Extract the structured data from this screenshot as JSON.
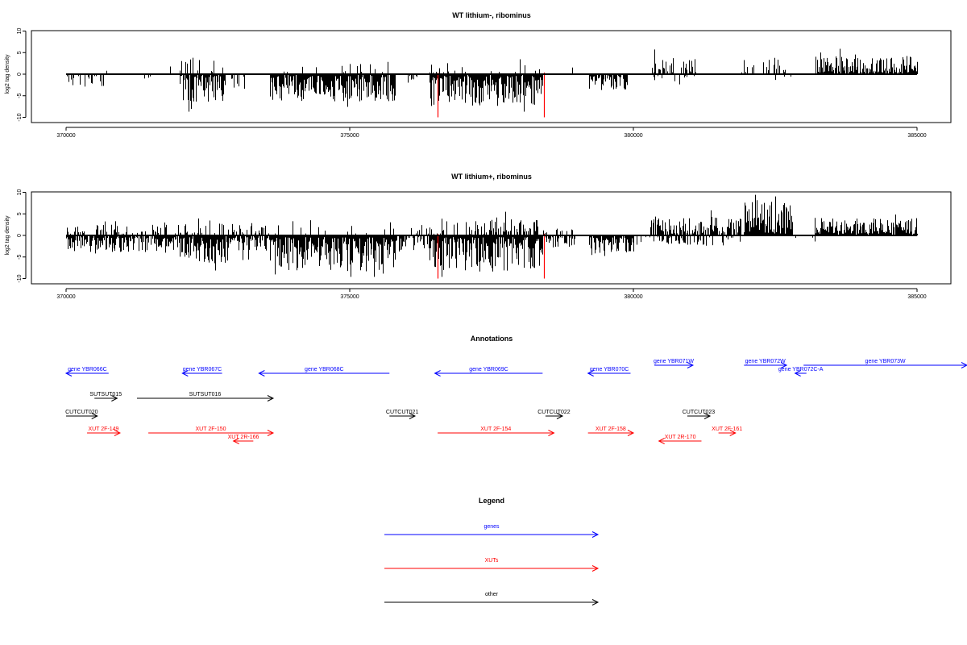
{
  "colors": {
    "gene": "#0000ff",
    "xut": "#ff0000",
    "other": "#000000",
    "highlight": "#ff0000"
  },
  "chart_data": [
    {
      "type": "bar",
      "title": "WT lithium-, ribominus",
      "ylabel": "log2 tag density",
      "xlim": [
        370000,
        385000
      ],
      "ylim": [
        -10,
        10
      ],
      "xticks": [
        "370000",
        "375000",
        "380000",
        "385000"
      ],
      "yticks": [
        "10",
        "5",
        "0",
        "-5",
        "-10"
      ],
      "highlight_positions": [
        376550,
        378420
      ],
      "segments": [
        {
          "start": 370000,
          "end": 370700,
          "density": 0.35,
          "dir": -1,
          "amp": 3.0,
          "seed": 11
        },
        {
          "start": 370700,
          "end": 371000,
          "density": 0.12,
          "dir": 1,
          "amp": 2.5,
          "seed": 12
        },
        {
          "start": 371300,
          "end": 371500,
          "density": 0.1,
          "dir": -1,
          "amp": 2.5,
          "seed": 13
        },
        {
          "start": 371800,
          "end": 371900,
          "density": 0.15,
          "dir": 1,
          "amp": 1.5,
          "seed": 14
        },
        {
          "start": 372000,
          "end": 372800,
          "density": 0.85,
          "dir": -1,
          "amp": 6.0,
          "seed": 15
        },
        {
          "start": 372000,
          "end": 372800,
          "density": 0.2,
          "dir": 1,
          "amp": 3.5,
          "seed": 16
        },
        {
          "start": 372900,
          "end": 373200,
          "density": 0.15,
          "dir": -1,
          "amp": 3.0,
          "seed": 17
        },
        {
          "start": 373600,
          "end": 375800,
          "density": 0.95,
          "dir": -1,
          "amp": 6.0,
          "seed": 18
        },
        {
          "start": 373600,
          "end": 375800,
          "density": 0.06,
          "dir": 1,
          "amp": 2.0,
          "seed": 19
        },
        {
          "start": 376000,
          "end": 376200,
          "density": 0.2,
          "dir": -1,
          "amp": 2.5,
          "seed": 20
        },
        {
          "start": 376400,
          "end": 378400,
          "density": 0.95,
          "dir": -1,
          "amp": 7.0,
          "seed": 21
        },
        {
          "start": 376400,
          "end": 378400,
          "density": 0.12,
          "dir": 1,
          "amp": 2.5,
          "seed": 22
        },
        {
          "start": 378800,
          "end": 379000,
          "density": 0.1,
          "dir": 1,
          "amp": 1.5,
          "seed": 23
        },
        {
          "start": 379200,
          "end": 379900,
          "density": 0.75,
          "dir": -1,
          "amp": 3.5,
          "seed": 24
        },
        {
          "start": 380300,
          "end": 381100,
          "density": 0.4,
          "dir": 1,
          "amp": 3.5,
          "seed": 25
        },
        {
          "start": 380300,
          "end": 381100,
          "density": 0.15,
          "dir": -1,
          "amp": 2.5,
          "seed": 26
        },
        {
          "start": 381900,
          "end": 382700,
          "density": 0.35,
          "dir": 1,
          "amp": 3.5,
          "seed": 27
        },
        {
          "start": 382400,
          "end": 382800,
          "density": 0.1,
          "dir": -1,
          "amp": 2.5,
          "seed": 28
        },
        {
          "start": 383200,
          "end": 385000,
          "density": 0.85,
          "dir": 1,
          "amp": 3.8,
          "seed": 29
        }
      ]
    },
    {
      "type": "bar",
      "title": "WT lithium+, ribominus",
      "ylabel": "log2 tag density",
      "xlim": [
        370000,
        385000
      ],
      "ylim": [
        -10,
        10
      ],
      "xticks": [
        "370000",
        "375000",
        "380000",
        "385000"
      ],
      "yticks": [
        "10",
        "5",
        "0",
        "-5",
        "-10"
      ],
      "highlight_positions": [
        376550,
        378420
      ],
      "segments": [
        {
          "start": 370000,
          "end": 373600,
          "density": 0.8,
          "dir": -1,
          "amp": 3.5,
          "seed": 31
        },
        {
          "start": 370000,
          "end": 373600,
          "density": 0.25,
          "dir": 1,
          "amp": 3.0,
          "seed": 32
        },
        {
          "start": 372000,
          "end": 372800,
          "density": 0.9,
          "dir": -1,
          "amp": 6.5,
          "seed": 33
        },
        {
          "start": 373600,
          "end": 375800,
          "density": 1.0,
          "dir": -1,
          "amp": 8.0,
          "seed": 34
        },
        {
          "start": 373600,
          "end": 375800,
          "density": 0.1,
          "dir": 1,
          "amp": 3.0,
          "seed": 35
        },
        {
          "start": 375800,
          "end": 376400,
          "density": 0.6,
          "dir": -1,
          "amp": 3.0,
          "seed": 36
        },
        {
          "start": 375800,
          "end": 376400,
          "density": 0.2,
          "dir": 1,
          "amp": 2.5,
          "seed": 37
        },
        {
          "start": 376400,
          "end": 378400,
          "density": 1.0,
          "dir": -1,
          "amp": 8.0,
          "seed": 38
        },
        {
          "start": 376400,
          "end": 378400,
          "density": 0.4,
          "dir": 1,
          "amp": 3.5,
          "seed": 39
        },
        {
          "start": 378400,
          "end": 379000,
          "density": 0.45,
          "dir": -1,
          "amp": 2.5,
          "seed": 40
        },
        {
          "start": 378400,
          "end": 379000,
          "density": 0.2,
          "dir": 1,
          "amp": 2.0,
          "seed": 41
        },
        {
          "start": 379200,
          "end": 380000,
          "density": 0.8,
          "dir": -1,
          "amp": 4.5,
          "seed": 42
        },
        {
          "start": 380000,
          "end": 380300,
          "density": 0.25,
          "dir": -1,
          "amp": 2.0,
          "seed": 43
        },
        {
          "start": 380300,
          "end": 381900,
          "density": 0.7,
          "dir": 1,
          "amp": 4.0,
          "seed": 44
        },
        {
          "start": 380300,
          "end": 381900,
          "density": 0.3,
          "dir": -1,
          "amp": 2.0,
          "seed": 45
        },
        {
          "start": 381950,
          "end": 382800,
          "density": 1.0,
          "dir": 1,
          "amp": 7.5,
          "seed": 46
        },
        {
          "start": 382800,
          "end": 383200,
          "density": 0.25,
          "dir": -1,
          "amp": 1.5,
          "seed": 47
        },
        {
          "start": 383200,
          "end": 385000,
          "density": 0.9,
          "dir": 1,
          "amp": 3.8,
          "seed": 48
        }
      ]
    }
  ],
  "annotations": {
    "title": "Annotations",
    "features": [
      {
        "label": "gene YBR066C",
        "class": "gene",
        "start": 370000,
        "end": 370750,
        "strand": "-",
        "track": 0
      },
      {
        "label": "gene YBR067C",
        "class": "gene",
        "start": 372050,
        "end": 372750,
        "strand": "-",
        "track": 0
      },
      {
        "label": "gene YBR068C",
        "class": "gene",
        "start": 373400,
        "end": 375700,
        "strand": "-",
        "track": 0
      },
      {
        "label": "gene YBR069C",
        "class": "gene",
        "start": 376500,
        "end": 378400,
        "strand": "-",
        "track": 0
      },
      {
        "label": "gene YBR070C",
        "class": "gene",
        "start": 379200,
        "end": 379950,
        "strand": "-",
        "track": 0
      },
      {
        "label": "gene YBR071W",
        "class": "gene",
        "start": 380370,
        "end": 381050,
        "strand": "+",
        "track": -1
      },
      {
        "label": "gene YBR072W",
        "class": "gene",
        "start": 381950,
        "end": 382700,
        "strand": "+",
        "track": -1
      },
      {
        "label": "gene YBR072C-A",
        "class": "gene",
        "start": 382850,
        "end": 383050,
        "strand": "-",
        "track": 0
      },
      {
        "label": "gene YBR073W",
        "class": "gene",
        "start": 383000,
        "end": 386000,
        "strand": "+",
        "track": -1
      },
      {
        "label": "SUTSUT015",
        "class": "other",
        "start": 370500,
        "end": 370900,
        "strand": "+",
        "track": 1
      },
      {
        "label": "SUTSUT016",
        "class": "other",
        "start": 371250,
        "end": 373650,
        "strand": "+",
        "track": 1
      },
      {
        "label": "CUTCUT020",
        "class": "other",
        "start": 370000,
        "end": 370550,
        "strand": "+",
        "track": 2
      },
      {
        "label": "CUTCUT021",
        "class": "other",
        "start": 375700,
        "end": 376150,
        "strand": "+",
        "track": 2
      },
      {
        "label": "CUTCUT022",
        "class": "other",
        "start": 378450,
        "end": 378750,
        "strand": "+",
        "track": 2
      },
      {
        "label": "CUTCUT023",
        "class": "other",
        "start": 380950,
        "end": 381350,
        "strand": "+",
        "track": 2
      },
      {
        "label": "XUT 2F-149",
        "class": "xut",
        "start": 370370,
        "end": 370950,
        "strand": "+",
        "track": 3
      },
      {
        "label": "XUT 2F-150",
        "class": "xut",
        "start": 371450,
        "end": 373650,
        "strand": "+",
        "track": 3
      },
      {
        "label": "XUT 2R-166",
        "class": "xut",
        "start": 372950,
        "end": 373300,
        "strand": "-",
        "track": 4
      },
      {
        "label": "XUT 2F-154",
        "class": "xut",
        "start": 376550,
        "end": 378600,
        "strand": "+",
        "track": 3
      },
      {
        "label": "XUT 2F-158",
        "class": "xut",
        "start": 379200,
        "end": 380000,
        "strand": "+",
        "track": 3
      },
      {
        "label": "XUT 2R-170",
        "class": "xut",
        "start": 380450,
        "end": 381200,
        "strand": "-",
        "track": 4
      },
      {
        "label": "XUT 2F-161",
        "class": "xut",
        "start": 381500,
        "end": 381800,
        "strand": "+",
        "track": 3
      }
    ]
  },
  "legend": {
    "title": "Legend",
    "items": [
      {
        "label": "genes",
        "class": "gene"
      },
      {
        "label": "XUTs",
        "class": "xut"
      },
      {
        "label": "other",
        "class": "other"
      }
    ]
  }
}
